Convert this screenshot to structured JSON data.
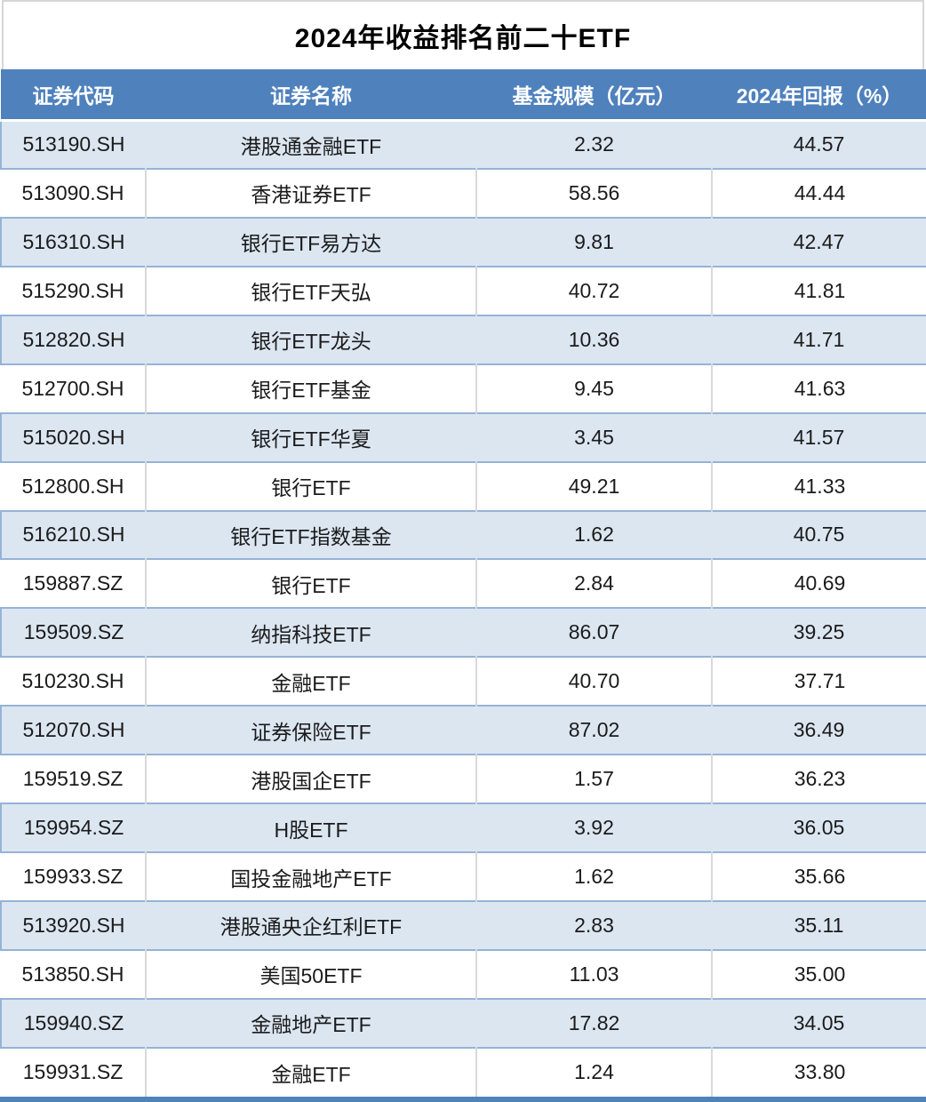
{
  "title": "2024年收益排名前二十ETF",
  "colors": {
    "header_bg": "#4F81BD",
    "header_text": "#FFFFFF",
    "alt_row_bg": "#DCE6F1",
    "alt_row_border": "#95B3D7",
    "plain_row_separator": "#D9D9D9",
    "bottom_bar": "#4F81BD",
    "body_text": "#1B1B1B"
  },
  "chart_data": {
    "type": "table",
    "title": "2024年收益排名前二十ETF",
    "columns": [
      "证券代码",
      "证券名称",
      "基金规模（亿元）",
      "2024年回报（%）"
    ],
    "rows": [
      {
        "code": "513190.SH",
        "name": "港股通金融ETF",
        "size": "2.32",
        "return": "44.57"
      },
      {
        "code": "513090.SH",
        "name": "香港证券ETF",
        "size": "58.56",
        "return": "44.44"
      },
      {
        "code": "516310.SH",
        "name": "银行ETF易方达",
        "size": "9.81",
        "return": "42.47"
      },
      {
        "code": "515290.SH",
        "name": "银行ETF天弘",
        "size": "40.72",
        "return": "41.81"
      },
      {
        "code": "512820.SH",
        "name": "银行ETF龙头",
        "size": "10.36",
        "return": "41.71"
      },
      {
        "code": "512700.SH",
        "name": "银行ETF基金",
        "size": "9.45",
        "return": "41.63"
      },
      {
        "code": "515020.SH",
        "name": "银行ETF华夏",
        "size": "3.45",
        "return": "41.57"
      },
      {
        "code": "512800.SH",
        "name": "银行ETF",
        "size": "49.21",
        "return": "41.33"
      },
      {
        "code": "516210.SH",
        "name": "银行ETF指数基金",
        "size": "1.62",
        "return": "40.75"
      },
      {
        "code": "159887.SZ",
        "name": "银行ETF",
        "size": "2.84",
        "return": "40.69"
      },
      {
        "code": "159509.SZ",
        "name": "纳指科技ETF",
        "size": "86.07",
        "return": "39.25"
      },
      {
        "code": "510230.SH",
        "name": "金融ETF",
        "size": "40.70",
        "return": "37.71"
      },
      {
        "code": "512070.SH",
        "name": "证券保险ETF",
        "size": "87.02",
        "return": "36.49"
      },
      {
        "code": "159519.SZ",
        "name": "港股国企ETF",
        "size": "1.57",
        "return": "36.23"
      },
      {
        "code": "159954.SZ",
        "name": "H股ETF",
        "size": "3.92",
        "return": "36.05"
      },
      {
        "code": "159933.SZ",
        "name": "国投金融地产ETF",
        "size": "1.62",
        "return": "35.66"
      },
      {
        "code": "513920.SH",
        "name": "港股通央企红利ETF",
        "size": "2.83",
        "return": "35.11"
      },
      {
        "code": "513850.SH",
        "name": "美国50ETF",
        "size": "11.03",
        "return": "35.00"
      },
      {
        "code": "159940.SZ",
        "name": "金融地产ETF",
        "size": "17.82",
        "return": "34.05"
      },
      {
        "code": "159931.SZ",
        "name": "金融ETF",
        "size": "1.24",
        "return": "33.80"
      }
    ]
  }
}
